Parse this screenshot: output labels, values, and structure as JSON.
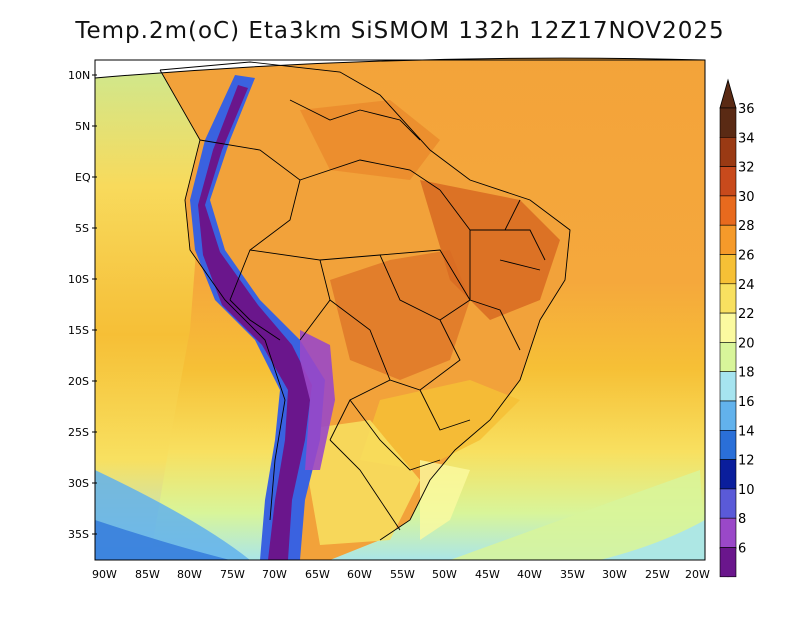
{
  "title": "Temp.2m(oC) Eta3km SiSMOM 132h 12Z17NOV2025",
  "lat_labels": [
    "10N",
    "5N",
    "EQ",
    "5S",
    "10S",
    "15S",
    "20S",
    "25S",
    "30S",
    "35S"
  ],
  "lon_labels": [
    "90W",
    "85W",
    "80W",
    "75W",
    "70W",
    "65W",
    "60W",
    "55W",
    "50W",
    "45W",
    "40W",
    "35W",
    "30W",
    "25W",
    "20W"
  ],
  "colorbar": {
    "labels": [
      "36",
      "34",
      "32",
      "30",
      "28",
      "26",
      "24",
      "22",
      "20",
      "18",
      "16",
      "14",
      "12",
      "10",
      "8",
      "6"
    ],
    "colors": [
      "#5a2a14",
      "#9a3a14",
      "#c84a1c",
      "#e86a1e",
      "#f59a2a",
      "#f6c036",
      "#f8e060",
      "#fbfaa0",
      "#d8f59a",
      "#a6e4f0",
      "#62b2ec",
      "#2a6fd8",
      "#0a1e9c",
      "#5a5ad8",
      "#9a48c8",
      "#6a168c"
    ]
  },
  "color_stops": {
    "andes_cold": "#6a168c",
    "andes_edge": "#3a62e0",
    "ocean_warm": "#f5a83c",
    "ocean_mild": "#f8e060",
    "south_cold": "#62b2ec",
    "interior_hot": "#e07a2a"
  }
}
